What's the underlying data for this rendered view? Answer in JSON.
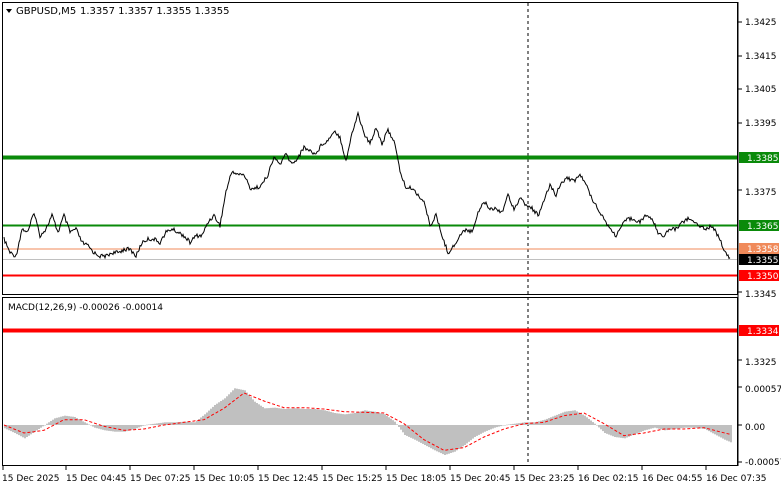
{
  "header": {
    "symbol": "GBPUSD,M5",
    "ohlc": "1.3357 1.3357 1.3355 1.3355",
    "menu_icon": "triangle-down-icon"
  },
  "main": {
    "price_ticks": [
      "1.3425",
      "1.3415",
      "1.3405",
      "1.3395",
      "1.3385",
      "1.3375",
      "1.3365",
      "1.3355",
      "1.3345",
      "1.3334",
      "1.3325"
    ],
    "levels": [
      {
        "label": "1.3385",
        "color": "#0a8a0a"
      },
      {
        "label": "1.3365",
        "color": "#0a8a0a"
      },
      {
        "label": "1.3358",
        "color": "#f08a5a"
      },
      {
        "label": "1.3355",
        "color": "#000000"
      },
      {
        "label": "1.3350",
        "color": "#ff0000"
      },
      {
        "label": "1.3334",
        "color": "#ff0000"
      }
    ]
  },
  "macd": {
    "label": "MACD(12,26,9) -0.00026 -0.00014",
    "ticks": [
      "0.00057",
      "0.00",
      "-0.00057"
    ]
  },
  "time_axis": [
    "15 Dec 2025",
    "15 Dec 04:45",
    "15 Dec 07:25",
    "15 Dec 10:05",
    "15 Dec 12:45",
    "15 Dec 15:25",
    "15 Dec 18:05",
    "15 Dec 20:45",
    "15 Dec 23:25",
    "16 Dec 02:15",
    "16 Dec 04:55",
    "16 Dec 07:35"
  ],
  "chart_data": {
    "type": "line",
    "title": "GBPUSD,M5",
    "ylim": [
      1.332,
      1.343
    ],
    "price_anchors": [
      [
        0,
        1.3361
      ],
      [
        6,
        1.3357
      ],
      [
        12,
        1.3356
      ],
      [
        18,
        1.3364
      ],
      [
        24,
        1.3363
      ],
      [
        30,
        1.3369
      ],
      [
        36,
        1.3362
      ],
      [
        42,
        1.3364
      ],
      [
        48,
        1.3368
      ],
      [
        54,
        1.3363
      ],
      [
        60,
        1.3368
      ],
      [
        66,
        1.3363
      ],
      [
        72,
        1.3364
      ],
      [
        78,
        1.336
      ],
      [
        84,
        1.3359
      ],
      [
        90,
        1.3357
      ],
      [
        96,
        1.3356
      ],
      [
        102,
        1.3356
      ],
      [
        108,
        1.3357
      ],
      [
        114,
        1.3357
      ],
      [
        120,
        1.3358
      ],
      [
        126,
        1.3358
      ],
      [
        132,
        1.3356
      ],
      [
        138,
        1.336
      ],
      [
        144,
        1.3361
      ],
      [
        150,
        1.3361
      ],
      [
        156,
        1.336
      ],
      [
        162,
        1.3363
      ],
      [
        168,
        1.3364
      ],
      [
        174,
        1.3363
      ],
      [
        180,
        1.3362
      ],
      [
        186,
        1.336
      ],
      [
        192,
        1.3362
      ],
      [
        198,
        1.3362
      ],
      [
        204,
        1.3366
      ],
      [
        210,
        1.3368
      ],
      [
        216,
        1.3365
      ],
      [
        222,
        1.3375
      ],
      [
        228,
        1.3381
      ],
      [
        234,
        1.338
      ],
      [
        240,
        1.338
      ],
      [
        246,
        1.3376
      ],
      [
        252,
        1.3376
      ],
      [
        258,
        1.3377
      ],
      [
        264,
        1.338
      ],
      [
        270,
        1.3385
      ],
      [
        276,
        1.3383
      ],
      [
        282,
        1.3386
      ],
      [
        288,
        1.3383
      ],
      [
        294,
        1.3385
      ],
      [
        300,
        1.3388
      ],
      [
        306,
        1.3387
      ],
      [
        312,
        1.3386
      ],
      [
        318,
        1.3389
      ],
      [
        324,
        1.339
      ],
      [
        330,
        1.3393
      ],
      [
        336,
        1.3391
      ],
      [
        342,
        1.3384
      ],
      [
        348,
        1.3392
      ],
      [
        354,
        1.3398
      ],
      [
        360,
        1.3392
      ],
      [
        366,
        1.3389
      ],
      [
        372,
        1.3394
      ],
      [
        378,
        1.3389
      ],
      [
        384,
        1.3393
      ],
      [
        390,
        1.339
      ],
      [
        396,
        1.3381
      ],
      [
        402,
        1.3376
      ],
      [
        408,
        1.3376
      ],
      [
        414,
        1.3374
      ],
      [
        420,
        1.3372
      ],
      [
        426,
        1.3365
      ],
      [
        432,
        1.3368
      ],
      [
        438,
        1.3362
      ],
      [
        444,
        1.3357
      ],
      [
        450,
        1.3359
      ],
      [
        456,
        1.3362
      ],
      [
        462,
        1.3364
      ],
      [
        468,
        1.3363
      ],
      [
        474,
        1.3369
      ],
      [
        480,
        1.3372
      ],
      [
        486,
        1.337
      ],
      [
        492,
        1.337
      ],
      [
        498,
        1.3369
      ],
      [
        504,
        1.3374
      ],
      [
        510,
        1.337
      ],
      [
        516,
        1.3373
      ],
      [
        522,
        1.3371
      ],
      [
        528,
        1.337
      ],
      [
        534,
        1.3368
      ],
      [
        540,
        1.3372
      ],
      [
        546,
        1.3377
      ],
      [
        552,
        1.3374
      ],
      [
        558,
        1.3378
      ],
      [
        564,
        1.3379
      ],
      [
        570,
        1.3378
      ],
      [
        576,
        1.338
      ],
      [
        582,
        1.3377
      ],
      [
        588,
        1.3373
      ],
      [
        594,
        1.337
      ],
      [
        600,
        1.3367
      ],
      [
        606,
        1.3364
      ],
      [
        612,
        1.3362
      ],
      [
        618,
        1.3365
      ],
      [
        624,
        1.3367
      ],
      [
        630,
        1.3367
      ],
      [
        636,
        1.3366
      ],
      [
        642,
        1.3368
      ],
      [
        648,
        1.3367
      ],
      [
        654,
        1.3363
      ],
      [
        660,
        1.3362
      ],
      [
        666,
        1.3364
      ],
      [
        672,
        1.3364
      ],
      [
        678,
        1.3366
      ],
      [
        684,
        1.3367
      ],
      [
        690,
        1.3366
      ],
      [
        696,
        1.3365
      ],
      [
        702,
        1.3364
      ],
      [
        708,
        1.3365
      ],
      [
        714,
        1.3362
      ],
      [
        720,
        1.3358
      ],
      [
        726,
        1.3355
      ]
    ],
    "macd_anchors": [
      [
        0,
        -5e-05
      ],
      [
        10,
        -0.00012
      ],
      [
        20,
        -0.0002
      ],
      [
        30,
        -0.0001
      ],
      [
        40,
        0.0
      ],
      [
        50,
        0.0001
      ],
      [
        60,
        0.00014
      ],
      [
        70,
        0.00012
      ],
      [
        80,
        4e-05
      ],
      [
        90,
        -4e-05
      ],
      [
        100,
        -8e-05
      ],
      [
        110,
        -0.0001
      ],
      [
        120,
        -0.0001
      ],
      [
        130,
        -6e-05
      ],
      [
        140,
        0.0
      ],
      [
        150,
        2e-05
      ],
      [
        160,
        4e-05
      ],
      [
        170,
        4e-05
      ],
      [
        180,
        5e-05
      ],
      [
        190,
        4e-05
      ],
      [
        200,
        0.00016
      ],
      [
        210,
        0.0003
      ],
      [
        220,
        0.0004
      ],
      [
        230,
        0.00055
      ],
      [
        240,
        0.00052
      ],
      [
        250,
        0.00035
      ],
      [
        260,
        0.00025
      ],
      [
        270,
        0.00026
      ],
      [
        280,
        0.00024
      ],
      [
        290,
        0.00025
      ],
      [
        300,
        0.00024
      ],
      [
        310,
        0.00024
      ],
      [
        320,
        0.00022
      ],
      [
        330,
        0.00018
      ],
      [
        340,
        0.00016
      ],
      [
        350,
        0.00018
      ],
      [
        360,
        0.00022
      ],
      [
        370,
        0.0002
      ],
      [
        380,
        0.00016
      ],
      [
        390,
        5e-05
      ],
      [
        400,
        -0.00015
      ],
      [
        410,
        -0.00022
      ],
      [
        420,
        -0.0003
      ],
      [
        430,
        -0.00038
      ],
      [
        440,
        -0.00045
      ],
      [
        450,
        -0.0004
      ],
      [
        460,
        -0.0003
      ],
      [
        470,
        -0.00018
      ],
      [
        480,
        -0.0001
      ],
      [
        490,
        -4e-05
      ],
      [
        500,
        0.0
      ],
      [
        510,
        2e-05
      ],
      [
        520,
        4e-05
      ],
      [
        530,
        4e-05
      ],
      [
        540,
        8e-05
      ],
      [
        550,
        0.00014
      ],
      [
        560,
        0.0002
      ],
      [
        570,
        0.00022
      ],
      [
        580,
        0.00014
      ],
      [
        590,
        2e-05
      ],
      [
        600,
        -0.00012
      ],
      [
        610,
        -0.00018
      ],
      [
        620,
        -0.0002
      ],
      [
        630,
        -0.00014
      ],
      [
        640,
        -8e-05
      ],
      [
        650,
        -4e-05
      ],
      [
        660,
        -8e-05
      ],
      [
        670,
        -6e-05
      ],
      [
        680,
        -4e-05
      ],
      [
        690,
        -4e-05
      ],
      [
        700,
        -6e-05
      ],
      [
        710,
        -0.00014
      ],
      [
        720,
        -0.00022
      ],
      [
        726,
        -0.00026
      ]
    ],
    "signal_anchors": [
      [
        0,
        0.0
      ],
      [
        20,
        -0.00012
      ],
      [
        40,
        -8e-05
      ],
      [
        60,
        8e-05
      ],
      [
        80,
        8e-05
      ],
      [
        100,
        -2e-05
      ],
      [
        120,
        -8e-05
      ],
      [
        140,
        -6e-05
      ],
      [
        160,
        0.0
      ],
      [
        180,
        4e-05
      ],
      [
        200,
        8e-05
      ],
      [
        220,
        0.00025
      ],
      [
        240,
        0.00048
      ],
      [
        260,
        0.00036
      ],
      [
        280,
        0.00026
      ],
      [
        300,
        0.00026
      ],
      [
        320,
        0.00024
      ],
      [
        340,
        0.0002
      ],
      [
        360,
        0.00019
      ],
      [
        380,
        0.00018
      ],
      [
        400,
        2e-05
      ],
      [
        420,
        -0.00022
      ],
      [
        440,
        -0.00038
      ],
      [
        460,
        -0.00034
      ],
      [
        480,
        -0.00018
      ],
      [
        500,
        -6e-05
      ],
      [
        520,
        2e-05
      ],
      [
        540,
        4e-05
      ],
      [
        560,
        0.00014
      ],
      [
        580,
        0.00018
      ],
      [
        600,
        2e-05
      ],
      [
        620,
        -0.00016
      ],
      [
        640,
        -0.00012
      ],
      [
        660,
        -6e-05
      ],
      [
        680,
        -6e-05
      ],
      [
        700,
        -4e-05
      ],
      [
        726,
        -0.00014
      ]
    ]
  }
}
